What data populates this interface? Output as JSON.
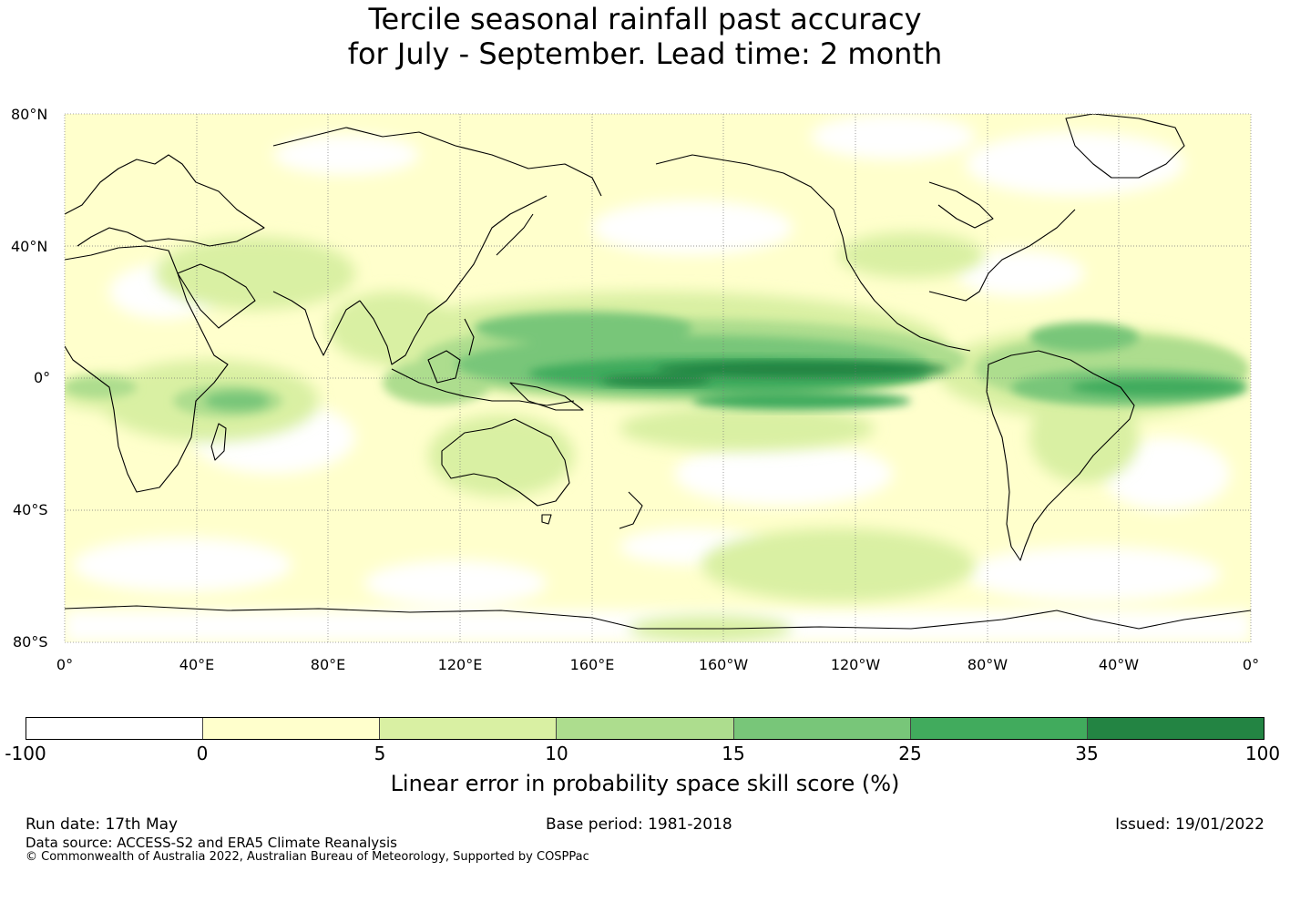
{
  "title": {
    "line1": "Tercile seasonal rainfall past accuracy",
    "line2": "for July - September. Lead time: 2 month"
  },
  "map": {
    "lat_labels": [
      "80°N",
      "40°N",
      "0°",
      "40°S",
      "80°S"
    ],
    "lon_labels": [
      "0°",
      "40°E",
      "80°E",
      "120°E",
      "160°E",
      "160°W",
      "120°W",
      "80°W",
      "40°W",
      "0°"
    ],
    "lon_range": [
      0,
      360
    ],
    "lat_range": [
      -80,
      80
    ],
    "gridlines": true,
    "land_outline_color": "#000000"
  },
  "colorbar": {
    "ticks": [
      "-100",
      "0",
      "5",
      "10",
      "15",
      "25",
      "35",
      "100"
    ],
    "colors": [
      "#ffffff",
      "#ffffcc",
      "#d9f0a3",
      "#addd8e",
      "#78c679",
      "#41ab5d",
      "#238443"
    ],
    "label": "Linear error in probability space skill score (%)"
  },
  "footer": {
    "run_date": "Run date: 17th May",
    "base_period": "Base period: 1981-2018",
    "issued": "Issued: 19/01/2022",
    "data_source": "Data source: ACCESS-S2 and ERA5 Climate Reanalysis",
    "copyright": "© Commonwealth of Australia 2022, Australian Bureau of Meteorology, Supported by COSPPac"
  }
}
